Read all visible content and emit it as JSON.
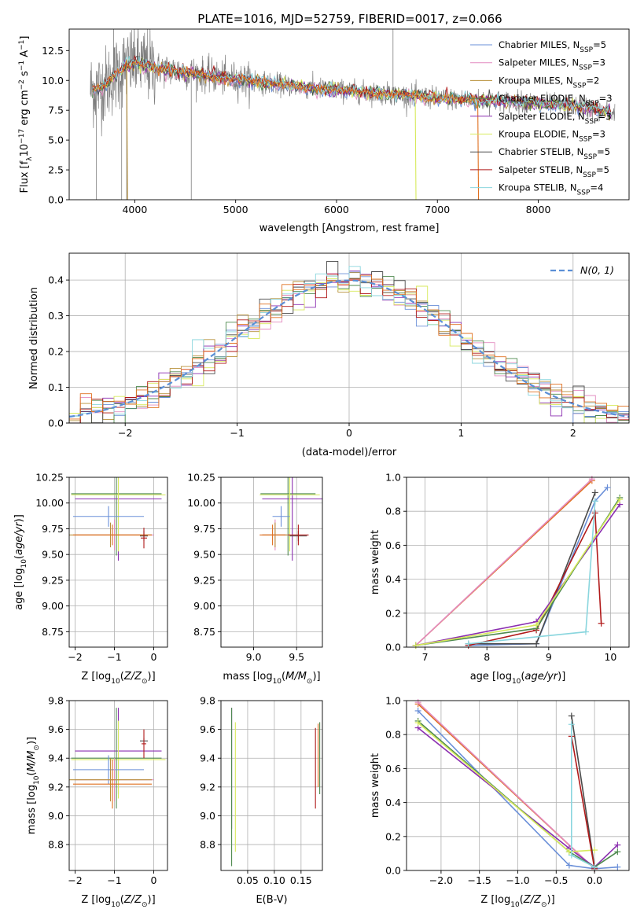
{
  "figure": {
    "title": "PLATE=1016, MJD=52759, FIBERID=0017, z=0.066"
  },
  "colors": {
    "cm": "#6a8fd8",
    "sm": "#e38cc0",
    "km": "#b8903a",
    "ce": "#4f8a4f",
    "se": "#8b2fb0",
    "ke": "#d7ea5c",
    "cs": "#4a4a4a",
    "ss": "#b11a1a",
    "ks": "#8ad6de",
    "data": "#7f7f7f",
    "orange": "#e07020",
    "gauss": "#5b8fd6"
  },
  "chart_data": [
    {
      "id": "spectrum",
      "type": "line",
      "title": "PLATE=1016, MJD=52759, FIBERID=0017, z=0.066",
      "xlabel": "wavelength [Angstrom, rest frame]",
      "ylabel": "Flux [f_λ 10^-17 erg cm^-2 s^-1 A^-1]",
      "xlim": [
        3350,
        8900
      ],
      "ylim": [
        0,
        14.3
      ],
      "xticks": [
        4000,
        5000,
        6000,
        7000,
        8000
      ],
      "yticks": [
        0.0,
        2.5,
        5.0,
        7.5,
        10.0,
        12.5
      ],
      "legend_position": "top-right",
      "series": [
        {
          "key": "cm",
          "name": "Chabrier MILES, N",
          "sub": "SSP",
          "suffix": "=5"
        },
        {
          "key": "sm",
          "name": "Salpeter MILES, N",
          "sub": "SSP",
          "suffix": "=3"
        },
        {
          "key": "km",
          "name": "Kroupa MILES, N",
          "sub": "SSP",
          "suffix": "=2"
        },
        {
          "key": "ce",
          "name": "Chabrier ELODIE, N",
          "sub": "SSP",
          "suffix": "=3"
        },
        {
          "key": "se",
          "name": "Salpeter ELODIE, N",
          "sub": "SSP",
          "suffix": "=3"
        },
        {
          "key": "ke",
          "name": "Kroupa ELODIE, N",
          "sub": "SSP",
          "suffix": "=3"
        },
        {
          "key": "cs",
          "name": "Chabrier STELIB, N",
          "sub": "SSP",
          "suffix": "=5"
        },
        {
          "key": "ss",
          "name": "Salpeter STELIB, N",
          "sub": "SSP",
          "suffix": "=5"
        },
        {
          "key": "ks",
          "name": "Kroupa STELIB, N",
          "sub": "SSP",
          "suffix": "=4"
        }
      ],
      "continuum": {
        "x": [
          3600,
          3700,
          3800,
          3900,
          4000,
          4100,
          4200,
          4400,
          4600,
          4800,
          5000,
          5200,
          5500,
          5800,
          6000,
          6300,
          6600,
          6900,
          7200,
          7500,
          7800,
          8100,
          8400,
          8600,
          8750
        ],
        "y": [
          9.3,
          9.6,
          10.4,
          11.2,
          11.5,
          11.3,
          11.0,
          10.8,
          10.6,
          10.3,
          10.1,
          9.9,
          9.6,
          9.3,
          9.2,
          9.0,
          8.8,
          8.6,
          8.4,
          8.3,
          8.2,
          8.0,
          7.8,
          7.5,
          7.3
        ]
      },
      "data_spikes": [
        {
          "x": 3620,
          "y": 0
        },
        {
          "x": 3790,
          "y": 14.3
        },
        {
          "x": 3870,
          "y": 0
        },
        {
          "x": 3920,
          "y": 0
        },
        {
          "x": 4560,
          "y": 0
        },
        {
          "x": 6560,
          "y": 14.3
        }
      ],
      "model_drops": [
        {
          "key": "km",
          "x": 3920,
          "y": 0
        },
        {
          "key": "ke",
          "x": 6780,
          "y": 0
        },
        {
          "key": "orange",
          "x": 7400,
          "y": 0
        }
      ]
    },
    {
      "id": "residuals",
      "type": "histogram",
      "xlabel": "(data-model)/error",
      "ylabel": "Normed distribution",
      "xlim": [
        -2.5,
        2.5
      ],
      "ylim": [
        0,
        0.475
      ],
      "xticks": [
        -2,
        -1,
        0,
        1,
        2
      ],
      "yticks": [
        0.0,
        0.1,
        0.2,
        0.3,
        0.4
      ],
      "legend_position": "top-right",
      "gauss_label": "N(0, 1)",
      "bin_width": 0.1
    },
    {
      "id": "age_vs_Z",
      "type": "errorbar",
      "xlabel": "Z [log10(Z/Z⊙)]",
      "ylabel": "age  [log10(age/yr)]",
      "xlim": [
        -2.15,
        0.35
      ],
      "ylim": [
        8.6,
        10.25
      ],
      "xticks": [
        -2,
        -1,
        0
      ],
      "yticks": [
        8.75,
        9.0,
        9.25,
        9.5,
        9.75,
        10.0,
        10.25
      ],
      "points": [
        {
          "key": "ce",
          "x": -0.95,
          "xerr": 1.15,
          "y": 10.09,
          "yerr": 0.6
        },
        {
          "key": "se",
          "x": -0.9,
          "xerr": 1.1,
          "y": 10.04,
          "yerr": 0.6
        },
        {
          "key": "ke",
          "x": -0.9,
          "xerr": 1.2,
          "y": 10.08,
          "yerr": 0.55
        },
        {
          "key": "cm",
          "x": -1.15,
          "xerr": 0.9,
          "y": 9.87,
          "yerr": 0.1
        },
        {
          "key": "sm",
          "x": -1.0,
          "xerr": 1.0,
          "y": 9.69,
          "yerr": 0.15
        },
        {
          "key": "km",
          "x": -1.1,
          "xerr": 1.05,
          "y": 9.69,
          "yerr": 0.12
        },
        {
          "key": "orange",
          "x": -1.05,
          "xerr": 1.0,
          "y": 9.69,
          "yerr": 0.1
        },
        {
          "key": "cs",
          "x": -0.25,
          "xerr": 0.1,
          "y": 9.68,
          "yerr": 0.05
        },
        {
          "key": "ss",
          "x": -0.25,
          "xerr": 0.08,
          "y": 9.66,
          "yerr": 0.1
        }
      ]
    },
    {
      "id": "age_vs_mass",
      "type": "errorbar",
      "xlabel": "mass [log10(M/M⊙)]",
      "ylabel": "",
      "xlim": [
        8.62,
        9.8
      ],
      "ylim": [
        8.6,
        10.25
      ],
      "xticks": [
        9.0,
        9.5
      ],
      "yticks": [
        8.75,
        9.0,
        9.25,
        9.5,
        9.75,
        10.0,
        10.25
      ],
      "points": [
        {
          "key": "ce",
          "x": 9.4,
          "xerr": 0.32,
          "y": 10.09,
          "yerr": 0.6
        },
        {
          "key": "se",
          "x": 9.45,
          "xerr": 0.35,
          "y": 10.04,
          "yerr": 0.6
        },
        {
          "key": "ke",
          "x": 9.42,
          "xerr": 0.35,
          "y": 10.08,
          "yerr": 0.55
        },
        {
          "key": "cm",
          "x": 9.32,
          "xerr": 0.1,
          "y": 9.87,
          "yerr": 0.1
        },
        {
          "key": "sm",
          "x": 9.25,
          "xerr": 0.15,
          "y": 9.69,
          "yerr": 0.15
        },
        {
          "key": "km",
          "x": 9.25,
          "xerr": 0.15,
          "y": 9.69,
          "yerr": 0.12
        },
        {
          "key": "orange",
          "x": 9.22,
          "xerr": 0.15,
          "y": 9.69,
          "yerr": 0.1
        },
        {
          "key": "cs",
          "x": 9.52,
          "xerr": 0.1,
          "y": 9.68,
          "yerr": 0.05
        },
        {
          "key": "ss",
          "x": 9.52,
          "xerr": 0.12,
          "y": 9.69,
          "yerr": 0.1
        }
      ]
    },
    {
      "id": "weight_vs_age",
      "type": "line",
      "xlabel": "age  [log10(age/yr)]",
      "ylabel": "mass weight",
      "xlim": [
        6.7,
        10.3
      ],
      "ylim": [
        0,
        1.0
      ],
      "xticks": [
        7,
        8,
        9,
        10
      ],
      "yticks": [
        0.0,
        0.2,
        0.4,
        0.6,
        0.8,
        1.0
      ],
      "series": [
        {
          "key": "orange",
          "x": [
            6.85,
            9.7
          ],
          "y": [
            0.01,
            0.98
          ]
        },
        {
          "key": "sm",
          "x": [
            6.85,
            9.7
          ],
          "y": [
            0.01,
            0.99
          ]
        },
        {
          "key": "cm",
          "x": [
            7.7,
            8.8,
            9.75,
            9.95
          ],
          "y": [
            0.01,
            0.02,
            0.86,
            0.94
          ]
        },
        {
          "key": "cs",
          "x": [
            7.7,
            8.8,
            9.75
          ],
          "y": [
            0.02,
            0.02,
            0.91
          ]
        },
        {
          "key": "ss",
          "x": [
            7.7,
            8.8,
            9.75,
            9.85
          ],
          "y": [
            0.01,
            0.1,
            0.79,
            0.14
          ]
        },
        {
          "key": "se",
          "x": [
            6.85,
            8.8,
            10.15
          ],
          "y": [
            0.01,
            0.15,
            0.84
          ]
        },
        {
          "key": "ce",
          "x": [
            6.85,
            8.8,
            10.15
          ],
          "y": [
            0.01,
            0.11,
            0.88
          ]
        },
        {
          "key": "ke",
          "x": [
            6.85,
            8.8,
            10.15
          ],
          "y": [
            0.01,
            0.13,
            0.87
          ]
        },
        {
          "key": "ks",
          "x": [
            7.7,
            9.6,
            9.75
          ],
          "y": [
            0.02,
            0.09,
            0.86
          ]
        }
      ]
    },
    {
      "id": "mass_vs_Z",
      "type": "errorbar",
      "xlabel": "Z [log10(Z/Z⊙)]",
      "ylabel": "mass [log10(M/M⊙)]",
      "xlim": [
        -2.15,
        0.35
      ],
      "ylim": [
        8.62,
        9.8
      ],
      "xticks": [
        -2,
        -1,
        0
      ],
      "yticks": [
        8.8,
        9.0,
        9.2,
        9.4,
        9.6,
        9.8
      ],
      "points": [
        {
          "key": "se",
          "x": -0.9,
          "xerr": 1.1,
          "y": 9.45,
          "yerr": 0.3
        },
        {
          "key": "ke",
          "x": -0.9,
          "xerr": 1.2,
          "y": 9.39,
          "yerr": 0.27
        },
        {
          "key": "ce",
          "x": -0.95,
          "xerr": 1.15,
          "y": 9.4,
          "yerr": 0.35
        },
        {
          "key": "cm",
          "x": -1.15,
          "xerr": 0.9,
          "y": 9.32,
          "yerr": 0.1
        },
        {
          "key": "sm",
          "x": -1.0,
          "xerr": 1.0,
          "y": 9.25,
          "yerr": 0.15
        },
        {
          "key": "km",
          "x": -1.1,
          "xerr": 1.05,
          "y": 9.25,
          "yerr": 0.15
        },
        {
          "key": "orange",
          "x": -1.05,
          "xerr": 1.0,
          "y": 9.22,
          "yerr": 0.17
        },
        {
          "key": "cs",
          "x": -0.25,
          "xerr": 0.1,
          "y": 9.52,
          "yerr": 0.02
        },
        {
          "key": "ss",
          "x": -0.25,
          "xerr": 0.06,
          "y": 9.5,
          "yerr": 0.1
        }
      ]
    },
    {
      "id": "mass_vs_ebv",
      "type": "errorbar",
      "xlabel": "E(B-V)",
      "ylabel": "",
      "xlim": [
        0.0,
        0.19
      ],
      "ylim": [
        8.62,
        9.8
      ],
      "xticks": [
        0.05,
        0.1,
        0.15
      ],
      "yticks": [
        8.8,
        9.0,
        9.2,
        9.4,
        9.6,
        9.8
      ],
      "points": [
        {
          "key": "se",
          "x": 0.02,
          "y": 9.33,
          "yerr": 0.42
        },
        {
          "key": "ce",
          "x": 0.02,
          "y": 9.2,
          "yerr": 0.55
        },
        {
          "key": "ke",
          "x": 0.027,
          "y": 9.2,
          "yerr": 0.45
        },
        {
          "key": "ss",
          "x": 0.177,
          "y": 9.33,
          "yerr": 0.28
        },
        {
          "key": "orange",
          "x": 0.182,
          "y": 9.42,
          "yerr": 0.22
        },
        {
          "key": "ce",
          "x": 0.185,
          "y": 9.4,
          "yerr": 0.25
        }
      ]
    },
    {
      "id": "weight_vs_Z",
      "type": "line",
      "xlabel": "Z [log10(Z/Z⊙)]",
      "ylabel": "mass weight",
      "xlim": [
        -2.45,
        0.45
      ],
      "ylim": [
        0,
        1.0
      ],
      "xticks": [
        -2.0,
        -1.5,
        -1.0,
        -0.5,
        0.0
      ],
      "yticks": [
        0.0,
        0.2,
        0.4,
        0.6,
        0.8,
        1.0
      ],
      "series": [
        {
          "key": "orange",
          "x": [
            -2.3,
            0.0
          ],
          "y": [
            0.98,
            0.01
          ]
        },
        {
          "key": "sm",
          "x": [
            -2.3,
            0.0
          ],
          "y": [
            0.99,
            0.01
          ]
        },
        {
          "key": "cm",
          "x": [
            -2.3,
            -0.33,
            0.0,
            0.3
          ],
          "y": [
            0.94,
            0.03,
            0.01,
            0.02
          ]
        },
        {
          "key": "se",
          "x": [
            -2.3,
            -0.33,
            0.0,
            0.3
          ],
          "y": [
            0.84,
            0.13,
            0.02,
            0.15
          ]
        },
        {
          "key": "ce",
          "x": [
            -2.3,
            -0.33,
            0.0,
            0.3
          ],
          "y": [
            0.88,
            0.11,
            0.02,
            0.11
          ]
        },
        {
          "key": "ke",
          "x": [
            -2.3,
            -0.33,
            0.0
          ],
          "y": [
            0.87,
            0.11,
            0.12
          ]
        },
        {
          "key": "cs",
          "x": [
            -0.3,
            0.0
          ],
          "y": [
            0.91,
            0.02
          ]
        },
        {
          "key": "ss",
          "x": [
            -0.3,
            0.0
          ],
          "y": [
            0.79,
            0.01
          ]
        },
        {
          "key": "ks",
          "x": [
            -0.3,
            -0.3,
            0.0
          ],
          "y": [
            0.86,
            0.09,
            0.02
          ]
        }
      ]
    }
  ]
}
